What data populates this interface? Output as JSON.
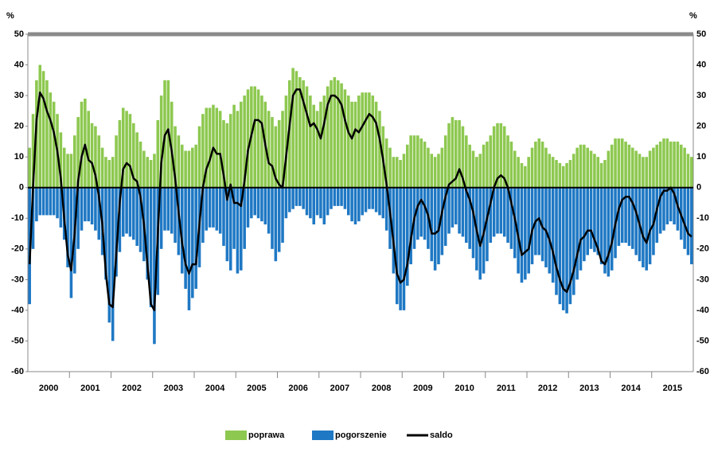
{
  "chart_data": {
    "type": "bar",
    "y_unit": "%",
    "categories": [
      null,
      null,
      null,
      null,
      null,
      null,
      "2000",
      null,
      null,
      null,
      null,
      null,
      null,
      null,
      null,
      null,
      null,
      null,
      "2001",
      null,
      null,
      null,
      null,
      null,
      null,
      null,
      null,
      null,
      null,
      null,
      "2002",
      null,
      null,
      null,
      null,
      null,
      null,
      null,
      null,
      null,
      null,
      null,
      "2003",
      null,
      null,
      null,
      null,
      null,
      null,
      null,
      null,
      null,
      null,
      null,
      "2004",
      null,
      null,
      null,
      null,
      null,
      null,
      null,
      null,
      null,
      null,
      null,
      "2005",
      null,
      null,
      null,
      null,
      null,
      null,
      null,
      null,
      null,
      null,
      null,
      "2006",
      null,
      null,
      null,
      null,
      null,
      null,
      null,
      null,
      null,
      null,
      null,
      "2007",
      null,
      null,
      null,
      null,
      null,
      null,
      null,
      null,
      null,
      null,
      null,
      "2008",
      null,
      null,
      null,
      null,
      null,
      null,
      null,
      null,
      null,
      null,
      null,
      "2009",
      null,
      null,
      null,
      null,
      null,
      null,
      null,
      null,
      null,
      null,
      null,
      "2010",
      null,
      null,
      null,
      null,
      null,
      null,
      null,
      null,
      null,
      null,
      null,
      "2011",
      null,
      null,
      null,
      null,
      null,
      null,
      null,
      null,
      null,
      null,
      null,
      "2012",
      null,
      null,
      null,
      null,
      null,
      null,
      null,
      null,
      null,
      null,
      null,
      "2013",
      null,
      null,
      null,
      null,
      null,
      null,
      null,
      null,
      null,
      null,
      null,
      "2014",
      null,
      null,
      null,
      null,
      null,
      null,
      null,
      null,
      null,
      null,
      null,
      "2015",
      null,
      null,
      null,
      null,
      null
    ],
    "series": [
      {
        "name": "poprawa",
        "color": "#8dc850",
        "kind": "bar",
        "values": [
          13,
          24,
          35,
          40,
          38,
          35,
          31,
          28,
          24,
          18,
          13,
          11,
          11,
          17,
          23,
          28,
          29,
          25,
          21,
          20,
          17,
          13,
          10,
          9,
          10,
          17,
          22,
          26,
          25,
          24,
          21,
          18,
          15,
          12,
          10,
          9,
          11,
          22,
          30,
          35,
          35,
          28,
          20,
          17,
          14,
          12,
          12,
          13,
          14,
          20,
          24,
          26,
          26,
          27,
          26,
          25,
          22,
          21,
          24,
          27,
          25,
          28,
          30,
          32,
          33,
          33,
          32,
          30,
          28,
          25,
          23,
          20,
          22,
          25,
          30,
          35,
          39,
          38,
          36,
          35,
          33,
          30,
          27,
          25,
          28,
          30,
          33,
          35,
          36,
          35,
          34,
          32,
          30,
          28,
          28,
          30,
          31,
          31,
          31,
          30,
          28,
          25,
          20,
          16,
          13,
          10,
          10,
          9,
          11,
          14,
          17,
          17,
          17,
          16,
          15,
          13,
          11,
          10,
          11,
          13,
          17,
          21,
          23,
          22,
          22,
          20,
          17,
          14,
          12,
          10,
          11,
          14,
          15,
          17,
          20,
          21,
          21,
          20,
          17,
          15,
          12,
          10,
          8,
          7,
          10,
          13,
          15,
          16,
          15,
          13,
          11,
          10,
          9,
          8,
          7,
          8,
          9,
          11,
          13,
          14,
          14,
          13,
          12,
          11,
          10,
          8,
          9,
          12,
          14,
          16,
          16,
          16,
          15,
          14,
          13,
          12,
          11,
          10,
          10,
          12,
          13,
          14,
          15,
          16,
          16,
          15,
          15,
          15,
          14,
          13,
          11,
          10
        ]
      },
      {
        "name": "pogorszenie",
        "color": "#1f78c4",
        "kind": "bar",
        "values": [
          -38,
          -20,
          -11,
          -9,
          -9,
          -9,
          -9,
          -9,
          -10,
          -13,
          -17,
          -26,
          -36,
          -28,
          -20,
          -14,
          -11,
          -11,
          -12,
          -14,
          -17,
          -22,
          -30,
          -44,
          -50,
          -29,
          -21,
          -16,
          -15,
          -16,
          -17,
          -19,
          -21,
          -24,
          -30,
          -39,
          -51,
          -35,
          -20,
          -14,
          -14,
          -15,
          -18,
          -22,
          -28,
          -33,
          -40,
          -36,
          -33,
          -26,
          -18,
          -14,
          -13,
          -13,
          -14,
          -15,
          -19,
          -24,
          -27,
          -20,
          -28,
          -27,
          -20,
          -13,
          -10,
          -9,
          -10,
          -11,
          -12,
          -15,
          -20,
          -24,
          -21,
          -18,
          -10,
          -8,
          -7,
          -6,
          -6,
          -7,
          -9,
          -10,
          -12,
          -9,
          -10,
          -12,
          -9,
          -7,
          -6,
          -6,
          -6,
          -7,
          -9,
          -11,
          -12,
          -11,
          -9,
          -8,
          -7,
          -7,
          -8,
          -9,
          -10,
          -14,
          -20,
          -28,
          -38,
          -40,
          -40,
          -32,
          -25,
          -20,
          -17,
          -16,
          -17,
          -20,
          -24,
          -27,
          -25,
          -22,
          -19,
          -15,
          -13,
          -12,
          -15,
          -16,
          -18,
          -20,
          -23,
          -27,
          -30,
          -28,
          -24,
          -18,
          -16,
          -15,
          -15,
          -16,
          -18,
          -20,
          -23,
          -28,
          -31,
          -30,
          -28,
          -25,
          -22,
          -22,
          -24,
          -26,
          -28,
          -31,
          -35,
          -38,
          -40,
          -41,
          -38,
          -35,
          -30,
          -27,
          -24,
          -22,
          -20,
          -21,
          -22,
          -25,
          -28,
          -29,
          -27,
          -23,
          -19,
          -18,
          -18,
          -19,
          -20,
          -22,
          -24,
          -26,
          -27,
          -25,
          -22,
          -18,
          -15,
          -14,
          -12,
          -11,
          -12,
          -14,
          -17,
          -20,
          -22,
          -25
        ]
      },
      {
        "name": "saldo",
        "color": "#000000",
        "kind": "line",
        "values": [
          -25,
          0,
          22,
          31,
          29,
          25,
          22,
          18,
          12,
          3,
          -10,
          -22,
          -27,
          -15,
          2,
          10,
          14,
          9,
          8,
          4,
          -3,
          -12,
          -28,
          -38,
          -39,
          -22,
          -5,
          6,
          8,
          7,
          3,
          2,
          -3,
          -12,
          -25,
          -38,
          -40,
          -15,
          8,
          17,
          19,
          12,
          3,
          -8,
          -18,
          -25,
          -28,
          -25,
          -25,
          -12,
          0,
          6,
          9,
          13,
          11,
          11,
          4,
          -4,
          1,
          -5,
          -5,
          -6,
          2,
          12,
          17,
          22,
          22,
          21,
          14,
          8,
          7,
          3,
          1,
          0,
          10,
          20,
          30,
          32,
          32,
          28,
          24,
          20,
          21,
          19,
          16,
          21,
          27,
          30,
          30,
          29,
          27,
          22,
          18,
          16,
          19,
          18,
          20,
          22,
          24,
          23,
          21,
          16,
          9,
          1,
          -8,
          -18,
          -28,
          -31,
          -30,
          -25,
          -17,
          -10,
          -6,
          -4,
          -6,
          -9,
          -15,
          -15,
          -14,
          -8,
          -3,
          1,
          2,
          3,
          6,
          3,
          -1,
          -4,
          -8,
          -14,
          -19,
          -15,
          -10,
          -5,
          0,
          3,
          4,
          3,
          0,
          -5,
          -10,
          -16,
          -22,
          -21,
          -20,
          -14,
          -11,
          -10,
          -13,
          -14,
          -17,
          -21,
          -26,
          -30,
          -33,
          -34,
          -31,
          -27,
          -22,
          -17,
          -16,
          -14,
          -14,
          -17,
          -20,
          -24,
          -25,
          -22,
          -18,
          -12,
          -7,
          -4,
          -3,
          -3,
          -5,
          -8,
          -12,
          -16,
          -18,
          -14,
          -12,
          -7,
          -3,
          -1,
          -1,
          0,
          -2,
          -6,
          -9,
          -12,
          -15,
          -16
        ]
      }
    ],
    "ylim": [
      -60,
      50
    ],
    "yticks": [
      -60,
      -50,
      -40,
      -30,
      -20,
      -10,
      0,
      10,
      20,
      30,
      40,
      50
    ],
    "legend": "bottom"
  }
}
